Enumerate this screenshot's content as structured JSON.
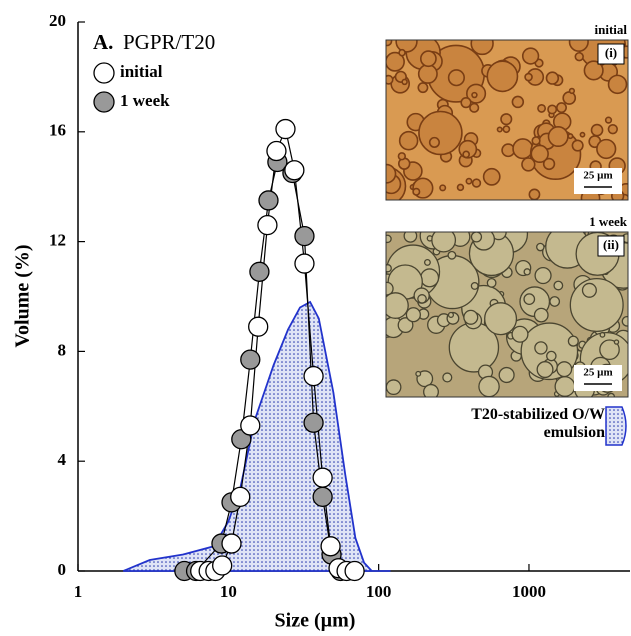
{
  "chart_data": {
    "type": "line",
    "panel_label": "A.",
    "title": "PGPR/T20",
    "xlabel": "Size (µm)",
    "ylabel": "Volume (%)",
    "xscale": "log",
    "xlim": [
      1,
      4700
    ],
    "xticks": [
      1,
      10,
      100,
      1000
    ],
    "ylim": [
      0,
      20
    ],
    "yticks": [
      0,
      4,
      8,
      12,
      16,
      20
    ],
    "series": [
      {
        "name": "1 week",
        "color": "#999999",
        "x": [
          5.1,
          6.1,
          9.0,
          10.5,
          12.2,
          14.0,
          16.1,
          18.5,
          21.2,
          26.7,
          32.1,
          36.9,
          42.4,
          48.6,
          55.8
        ],
        "values": [
          0,
          0,
          1.0,
          2.5,
          4.8,
          7.7,
          10.9,
          13.5,
          14.9,
          14.5,
          12.2,
          5.4,
          2.7,
          0.6,
          0
        ]
      },
      {
        "name": "initial",
        "color": "#ffffff",
        "x": [
          6.5,
          7.4,
          8.2,
          9.1,
          10.5,
          12.0,
          14.0,
          15.8,
          18.2,
          20.9,
          24.0,
          27.5,
          32.1,
          36.9,
          42.4,
          47.9,
          54.1,
          61.2,
          69.2
        ],
        "values": [
          0,
          0,
          0,
          0.2,
          1.0,
          2.7,
          5.3,
          8.9,
          12.6,
          15.3,
          16.1,
          14.6,
          11.2,
          7.1,
          3.4,
          0.9,
          0.1,
          0,
          0
        ]
      },
      {
        "name": "T20-stabilized O/W emulsion",
        "type": "area",
        "color": "#2233cc",
        "x": [
          2,
          3,
          5,
          8,
          10,
          12,
          15,
          20,
          25,
          30,
          35,
          40,
          50,
          60,
          70,
          80,
          90,
          120
        ],
        "values": [
          0,
          0.4,
          0.6,
          0.9,
          1.8,
          3.0,
          5.5,
          7.5,
          8.8,
          9.6,
          9.8,
          9.2,
          6.5,
          3.5,
          1.2,
          0.3,
          0,
          0
        ]
      }
    ],
    "insets": [
      {
        "label": "initial",
        "tag": "(i)",
        "scale": "25 µm",
        "color": "#d99a52"
      },
      {
        "label": "1 week",
        "tag": "(ii)",
        "scale": "25 µm",
        "color": "#b7a57a"
      }
    ]
  }
}
